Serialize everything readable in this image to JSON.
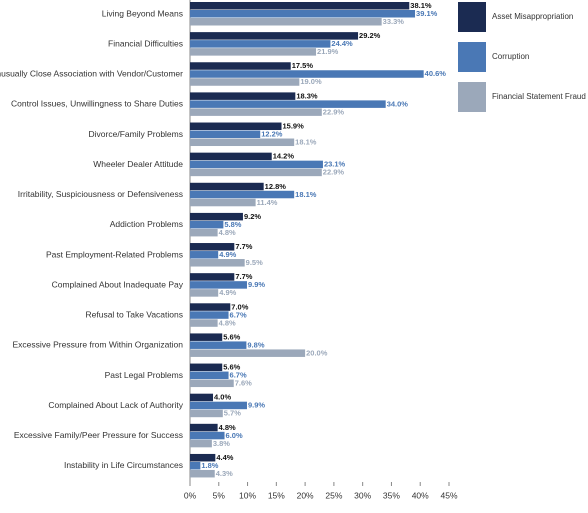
{
  "chart_data": {
    "type": "bar",
    "orientation": "horizontal",
    "categories": [
      "Living Beyond Means",
      "Financial Difficulties",
      "Unusually Close Association with Vendor/Customer",
      "Control Issues, Unwillingness to Share Duties",
      "Divorce/Family Problems",
      "Wheeler Dealer Attitude",
      "Irritability, Suspiciousness or Defensiveness",
      "Addiction Problems",
      "Past Employment-Related Problems",
      "Complained About Inadequate Pay",
      "Refusal to Take Vacations",
      "Excessive Pressure from Within Organization",
      "Past Legal Problems",
      "Complained About Lack of Authority",
      "Excessive Family/Peer Pressure for Success",
      "Instability in Life Circumstances"
    ],
    "series": [
      {
        "name": "Asset Misappropriation",
        "color": "#1b2b52",
        "values": [
          38.1,
          29.2,
          17.5,
          18.3,
          15.9,
          14.2,
          12.8,
          9.2,
          7.7,
          7.7,
          7.0,
          5.6,
          5.6,
          4.0,
          4.8,
          4.4
        ],
        "value_labels": [
          "38.1%",
          "29.2%",
          "17.5%",
          "18.3%",
          "15.9%",
          "14.2%",
          "12.8%",
          "9.2%",
          "7.7%",
          "7.7%",
          "7.0%",
          "5.6%",
          "5.6%",
          "4.0%",
          "4.8%",
          "4.4%"
        ]
      },
      {
        "name": "Corruption",
        "color": "#4a78b5",
        "values": [
          39.1,
          24.4,
          40.6,
          34.0,
          12.2,
          23.1,
          18.1,
          5.8,
          4.9,
          9.9,
          6.7,
          9.8,
          6.7,
          9.9,
          6.0,
          1.8
        ],
        "value_labels": [
          "39.1%",
          "24.4%",
          "40.6%",
          "34.0%",
          "12.2%",
          "23.1%",
          "18.1%",
          "5.8%",
          "4.9%",
          "9.9%",
          "6.7%",
          "9.8%",
          "6.7%",
          "9.9%",
          "6.0%",
          "1.8%"
        ]
      },
      {
        "name": "Financial Statement Fraud",
        "color": "#9ba8ba",
        "values": [
          33.3,
          21.9,
          19.0,
          22.9,
          18.1,
          22.9,
          11.4,
          4.8,
          9.5,
          4.9,
          4.8,
          20.0,
          7.6,
          5.7,
          3.8,
          4.3
        ],
        "value_labels": [
          "33.3%",
          "21.9%",
          "19.0%",
          "22.9%",
          "18.1%",
          "22.9%",
          "11.4%",
          "4.8%",
          "9.5%",
          "4.9%",
          "4.8%",
          "20.0%",
          "7.6%",
          "5.7%",
          "3.8%",
          "4.3%"
        ]
      }
    ],
    "xlim": [
      0,
      45
    ],
    "xticks": [
      {
        "value": 0,
        "label": "0%"
      },
      {
        "value": 5,
        "label": "5%"
      },
      {
        "value": 10,
        "label": "10%"
      },
      {
        "value": 15,
        "label": "15%"
      },
      {
        "value": 20,
        "label": "20%"
      },
      {
        "value": 25,
        "label": "25%"
      },
      {
        "value": 30,
        "label": "30%"
      },
      {
        "value": 35,
        "label": "35%"
      },
      {
        "value": 40,
        "label": "40%"
      },
      {
        "value": 45,
        "label": "45%"
      }
    ],
    "grid": false,
    "legend": "right"
  }
}
